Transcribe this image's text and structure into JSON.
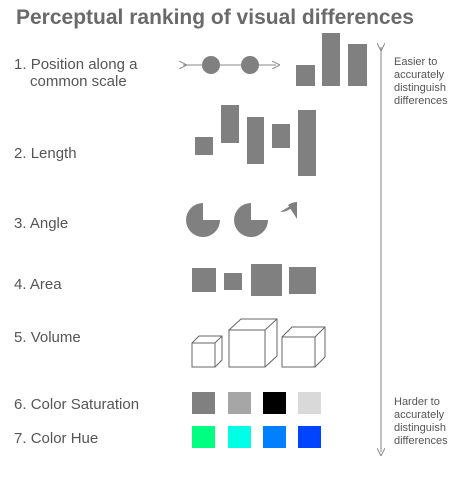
{
  "title": "Perceptual ranking of visual differences",
  "items": [
    {
      "num": "1.",
      "line1": "Position along a",
      "line2": "common scale"
    },
    {
      "num": "2.",
      "line1": "Length"
    },
    {
      "num": "3.",
      "line1": "Angle"
    },
    {
      "num": "4.",
      "line1": "Area"
    },
    {
      "num": "5.",
      "line1": "Volume"
    },
    {
      "num": "6.",
      "line1": "Color Saturation"
    },
    {
      "num": "7.",
      "line1": "Color Hue"
    }
  ],
  "notes": {
    "top": [
      "Easier to",
      "accurately",
      "distinguish",
      "differences"
    ],
    "bottom": [
      "Harder to",
      "accurately",
      "distinguish",
      "differences"
    ]
  },
  "colors": {
    "shape_fill": "#808080",
    "saturation": [
      "#808080",
      "#a6a6a6",
      "#000000",
      "#d9d9d9"
    ],
    "hue": [
      "#00ff80",
      "#00ffe6",
      "#0080ff",
      "#0044ff"
    ]
  }
}
